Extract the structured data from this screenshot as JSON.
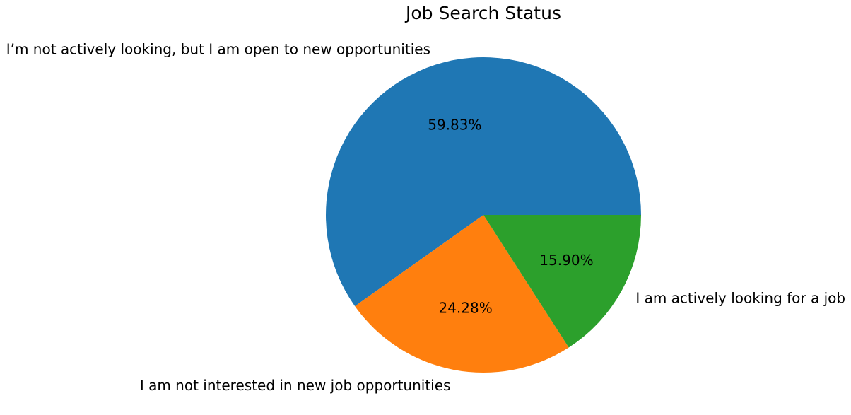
{
  "chart_data": {
    "type": "pie",
    "title": "Job Search Status",
    "categories": [
      "I’m not actively looking, but I am open to new opportunities",
      "I am not interested in new job opportunities",
      "I am actively looking for a job"
    ],
    "values": [
      59.83,
      24.28,
      15.9
    ],
    "value_labels": [
      "59.83%",
      "24.28%",
      "15.90%"
    ],
    "colors": [
      "#1f77b4",
      "#ff7f0e",
      "#2ca02c"
    ],
    "legend": "none"
  }
}
